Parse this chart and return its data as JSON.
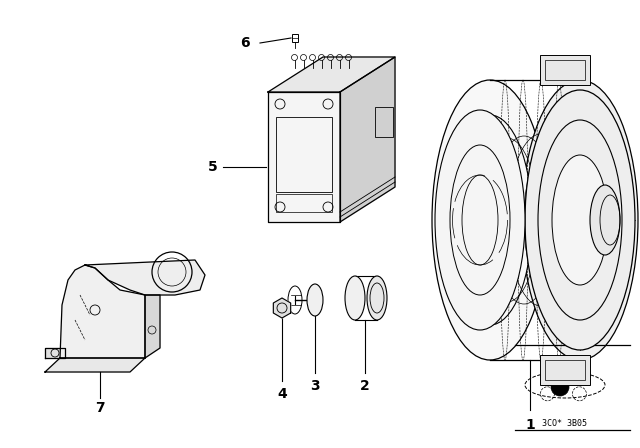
{
  "bg_color": "#ffffff",
  "line_color": "#000000",
  "diagram_code": "3CO* 3B05",
  "fig_width": 6.4,
  "fig_height": 4.48,
  "dpi": 100
}
